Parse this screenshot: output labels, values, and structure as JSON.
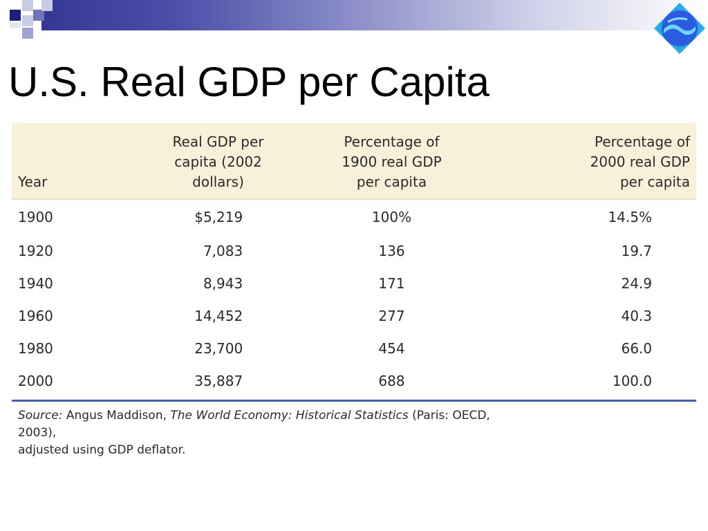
{
  "slide": {
    "title": "U.S. Real GDP per Capita"
  },
  "colors": {
    "band_dark": "#2e2f8f",
    "header_bg": "#f8f0d8",
    "rule": "#4a5ea8",
    "logo_blue": "#2a5be0",
    "logo_cyan": "#2aa8e8"
  },
  "table": {
    "headers": {
      "year": "Year",
      "gdp_line1": "Real GDP per",
      "gdp_line2": "capita (2002",
      "gdp_line3": "dollars)",
      "p1900_line1": "Percentage of",
      "p1900_line2": "1900 real GDP",
      "p1900_line3": "per capita",
      "p2000_line1": "Percentage of",
      "p2000_line2": "2000 real GDP",
      "p2000_line3": "per capita"
    },
    "rows": [
      {
        "year": "1900",
        "gdp": "$5,219",
        "p1900": "100%",
        "p2000": "14.5%"
      },
      {
        "year": "1920",
        "gdp": "7,083",
        "p1900": "136",
        "p2000": "19.7"
      },
      {
        "year": "1940",
        "gdp": "8,943",
        "p1900": "171",
        "p2000": "24.9"
      },
      {
        "year": "1960",
        "gdp": "14,452",
        "p1900": "277",
        "p2000": "40.3"
      },
      {
        "year": "1980",
        "gdp": "23,700",
        "p1900": "454",
        "p2000": "66.0"
      },
      {
        "year": "2000",
        "gdp": "35,887",
        "p1900": "688",
        "p2000": "100.0"
      }
    ]
  },
  "source": {
    "label": "Source:",
    "author": " Angus Maddison, ",
    "book": "The World Economy: Historical Statistics",
    "pub": " (Paris: OECD, 2003),",
    "line2": "adjusted using GDP deflator."
  }
}
